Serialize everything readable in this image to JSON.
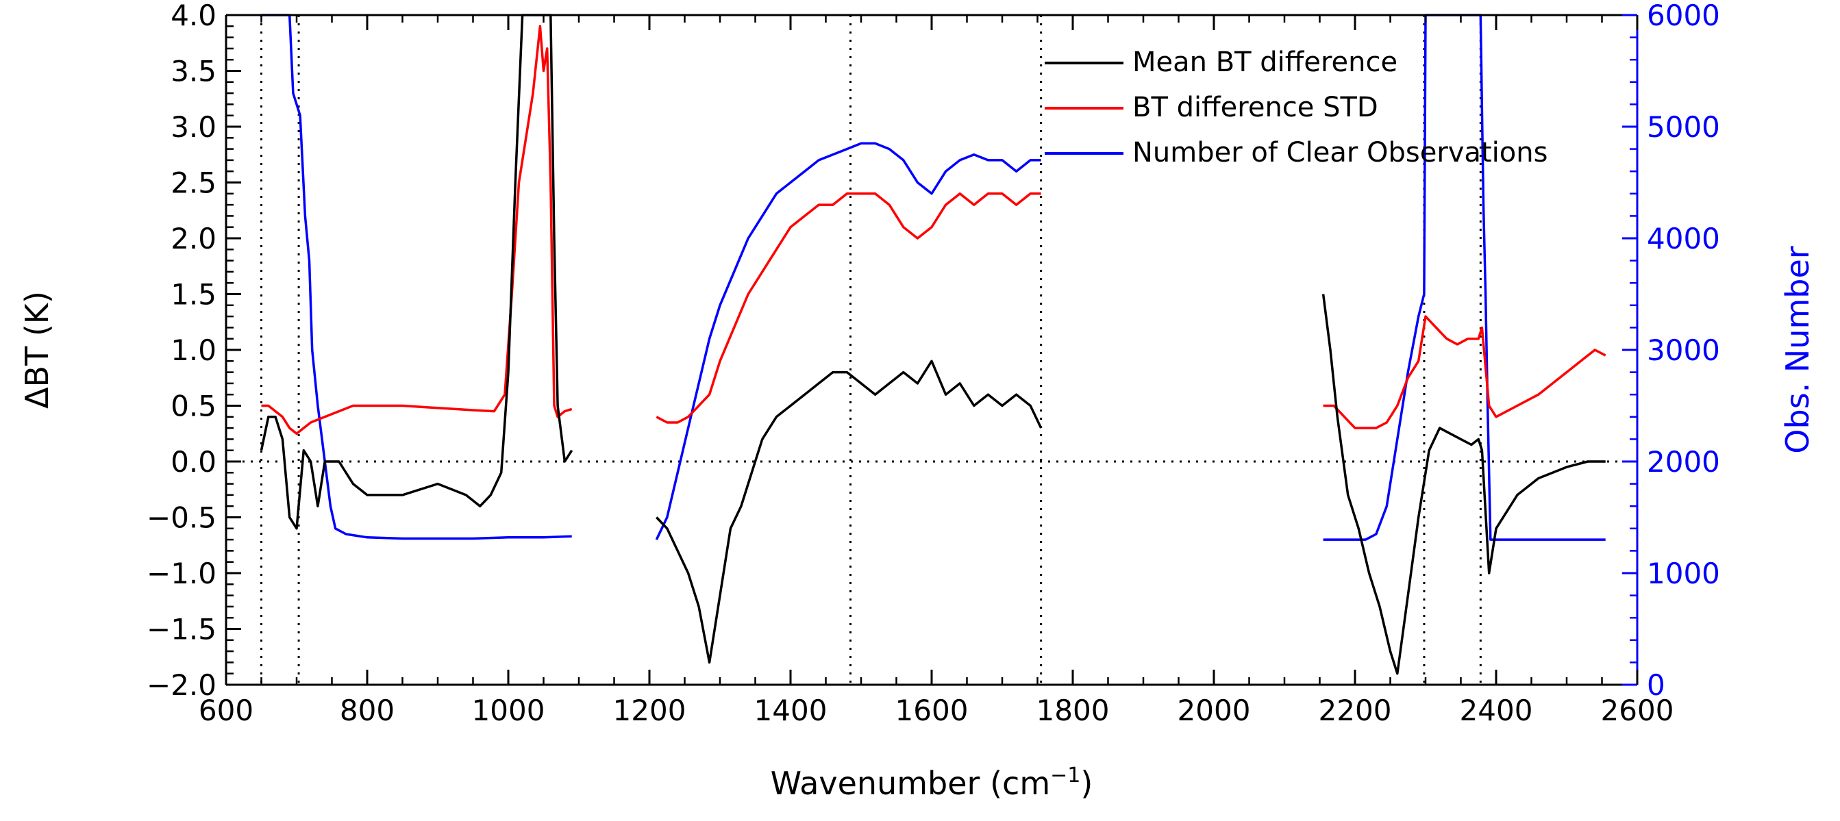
{
  "chart_data": {
    "type": "line",
    "title": "",
    "xlabel": "Wavenumber (cm",
    "xlabel_sup": "−1",
    "xlabel_close": ")",
    "ylabel_left": "ΔBT (K)",
    "ylabel_right": "Obs. Number",
    "xlim": [
      600,
      2600
    ],
    "ylim_left": [
      -2.0,
      4.0
    ],
    "ylim_right": [
      0,
      6000
    ],
    "x_ticks": [
      600,
      800,
      1000,
      1200,
      1400,
      1600,
      1800,
      2000,
      2200,
      2400,
      2600
    ],
    "x_tick_labels": [
      "600",
      "800",
      "1000",
      "1200",
      "1400",
      "1600",
      "1800",
      "2000",
      "2200",
      "2400",
      "2600"
    ],
    "y_left_ticks": [
      -2.0,
      -1.5,
      -1.0,
      -0.5,
      0.0,
      0.5,
      1.0,
      1.5,
      2.0,
      2.5,
      3.0,
      3.5,
      4.0
    ],
    "y_left_tick_labels": [
      "−2.0",
      "−1.5",
      "−1.0",
      "−0.5",
      "0.0",
      "0.5",
      "1.0",
      "1.5",
      "2.0",
      "2.5",
      "3.0",
      "3.5",
      "4.0"
    ],
    "y_right_ticks": [
      0,
      1000,
      2000,
      3000,
      4000,
      5000,
      6000
    ],
    "y_right_tick_labels": [
      "0",
      "1000",
      "2000",
      "3000",
      "4000",
      "5000",
      "6000"
    ],
    "reference_lines": {
      "horizontal_zero": 0.0,
      "vertical_x": [
        650,
        703,
        1485,
        1755,
        2298,
        2378
      ]
    },
    "legend": {
      "position": "top-right",
      "entries": [
        {
          "label": "Mean BT difference",
          "color": "#000000"
        },
        {
          "label": "BT difference STD",
          "color": "#ff0000"
        },
        {
          "label": "Number of Clear Observations",
          "color": "#0000ff"
        }
      ]
    },
    "series": [
      {
        "name": "Mean BT difference",
        "axis": "left",
        "color": "#000000",
        "segments": [
          {
            "x": [
              650,
              660,
              670,
              680,
              690,
              700,
              710,
              720,
              730,
              740,
              760,
              780,
              800,
              850,
              900,
              940,
              960,
              975,
              990,
              1000,
              1010,
              1020,
              1030,
              1040,
              1050,
              1060,
              1065,
              1070,
              1080,
              1090
            ],
            "y": [
              0.1,
              0.4,
              0.4,
              0.2,
              -0.5,
              -0.6,
              0.1,
              0.0,
              -0.4,
              0.0,
              0.0,
              -0.2,
              -0.3,
              -0.3,
              -0.2,
              -0.3,
              -0.4,
              -0.3,
              -0.1,
              0.8,
              2.5,
              4.0,
              4.0,
              4.0,
              4.0,
              4.0,
              2.0,
              0.5,
              0.0,
              0.1
            ]
          },
          {
            "x": [
              1210,
              1225,
              1240,
              1255,
              1270,
              1285,
              1300,
              1315,
              1330,
              1345,
              1360,
              1380,
              1400,
              1420,
              1440,
              1460,
              1480,
              1500,
              1520,
              1540,
              1560,
              1580,
              1600,
              1620,
              1640,
              1660,
              1680,
              1700,
              1720,
              1740,
              1755
            ],
            "y": [
              -0.5,
              -0.6,
              -0.8,
              -1.0,
              -1.3,
              -1.8,
              -1.2,
              -0.6,
              -0.4,
              -0.1,
              0.2,
              0.4,
              0.5,
              0.6,
              0.7,
              0.8,
              0.8,
              0.7,
              0.6,
              0.7,
              0.8,
              0.7,
              0.9,
              0.6,
              0.7,
              0.5,
              0.6,
              0.5,
              0.6,
              0.5,
              0.3
            ]
          },
          {
            "x": [
              2155,
              2165,
              2175,
              2190,
              2205,
              2220,
              2235,
              2250,
              2260,
              2275,
              2290,
              2305,
              2320,
              2335,
              2350,
              2365,
              2375,
              2380,
              2390,
              2400,
              2430,
              2460,
              2500,
              2530,
              2555
            ],
            "y": [
              1.5,
              1.0,
              0.4,
              -0.3,
              -0.6,
              -1.0,
              -1.3,
              -1.7,
              -1.9,
              -1.2,
              -0.5,
              0.1,
              0.3,
              0.25,
              0.2,
              0.15,
              0.2,
              0.1,
              -1.0,
              -0.6,
              -0.3,
              -0.15,
              -0.05,
              0.0,
              0.0
            ]
          }
        ]
      },
      {
        "name": "BT difference STD",
        "axis": "left",
        "color": "#ff0000",
        "segments": [
          {
            "x": [
              650,
              660,
              670,
              680,
              690,
              700,
              710,
              720,
              740,
              760,
              780,
              800,
              850,
              900,
              950,
              980,
              995,
              1005,
              1015,
              1025,
              1035,
              1040,
              1045,
              1050,
              1055,
              1060,
              1065,
              1070,
              1080,
              1090
            ],
            "y": [
              0.5,
              0.5,
              0.45,
              0.4,
              0.3,
              0.25,
              0.3,
              0.35,
              0.4,
              0.45,
              0.5,
              0.5,
              0.5,
              0.48,
              0.46,
              0.45,
              0.6,
              1.5,
              2.5,
              2.9,
              3.3,
              3.6,
              3.9,
              3.5,
              3.7,
              2.5,
              0.5,
              0.4,
              0.45,
              0.47
            ]
          },
          {
            "x": [
              1210,
              1225,
              1240,
              1255,
              1270,
              1285,
              1300,
              1320,
              1340,
              1360,
              1380,
              1400,
              1420,
              1440,
              1460,
              1480,
              1500,
              1520,
              1540,
              1560,
              1580,
              1600,
              1620,
              1640,
              1660,
              1680,
              1700,
              1720,
              1740,
              1755
            ],
            "y": [
              0.4,
              0.35,
              0.35,
              0.4,
              0.5,
              0.6,
              0.9,
              1.2,
              1.5,
              1.7,
              1.9,
              2.1,
              2.2,
              2.3,
              2.3,
              2.4,
              2.4,
              2.4,
              2.3,
              2.1,
              2.0,
              2.1,
              2.3,
              2.4,
              2.3,
              2.4,
              2.4,
              2.3,
              2.4,
              2.4
            ]
          },
          {
            "x": [
              2155,
              2170,
              2185,
              2200,
              2215,
              2230,
              2245,
              2260,
              2275,
              2290,
              2300,
              2315,
              2330,
              2345,
              2360,
              2375,
              2380,
              2390,
              2400,
              2430,
              2460,
              2490,
              2520,
              2540,
              2555
            ],
            "y": [
              0.5,
              0.5,
              0.4,
              0.3,
              0.3,
              0.3,
              0.35,
              0.5,
              0.75,
              0.9,
              1.3,
              1.2,
              1.1,
              1.05,
              1.1,
              1.1,
              1.2,
              0.5,
              0.4,
              0.5,
              0.6,
              0.75,
              0.9,
              1.0,
              0.95
            ]
          }
        ]
      },
      {
        "name": "Number of Clear Observations",
        "axis": "right",
        "color": "#0000ff",
        "segments": [
          {
            "x": [
              650,
              665,
              680,
              690,
              695,
              700,
              705,
              712,
              718,
              722,
              730,
              740,
              748,
              755,
              770,
              800,
              850,
              900,
              950,
              1000,
              1050,
              1090
            ],
            "y": [
              6000,
              6000,
              6000,
              6000,
              5300,
              5200,
              5100,
              4200,
              3800,
              3000,
              2500,
              2000,
              1600,
              1400,
              1350,
              1320,
              1310,
              1310,
              1310,
              1320,
              1320,
              1330
            ]
          },
          {
            "x": [
              1210,
              1225,
              1240,
              1255,
              1270,
              1285,
              1300,
              1320,
              1340,
              1360,
              1380,
              1400,
              1420,
              1440,
              1460,
              1480,
              1500,
              1520,
              1540,
              1560,
              1580,
              1600,
              1620,
              1640,
              1660,
              1680,
              1700,
              1720,
              1740,
              1755
            ],
            "y": [
              1300,
              1500,
              1900,
              2300,
              2700,
              3100,
              3400,
              3700,
              4000,
              4200,
              4400,
              4500,
              4600,
              4700,
              4750,
              4800,
              4850,
              4850,
              4800,
              4700,
              4500,
              4400,
              4600,
              4700,
              4750,
              4700,
              4700,
              4600,
              4700,
              4700
            ]
          },
          {
            "x": [
              2155,
              2175,
              2195,
              2215,
              2230,
              2245,
              2260,
              2275,
              2290,
              2298,
              2300,
              2310,
              2330,
              2350,
              2370,
              2378,
              2382,
              2385,
              2388,
              2392,
              2400,
              2450,
              2500,
              2555
            ],
            "y": [
              1300,
              1300,
              1300,
              1300,
              1350,
              1600,
              2200,
              2800,
              3300,
              3500,
              6000,
              6000,
              6000,
              6000,
              6000,
              6000,
              4300,
              3500,
              2500,
              1300,
              1300,
              1300,
              1300,
              1300
            ]
          }
        ]
      }
    ]
  }
}
